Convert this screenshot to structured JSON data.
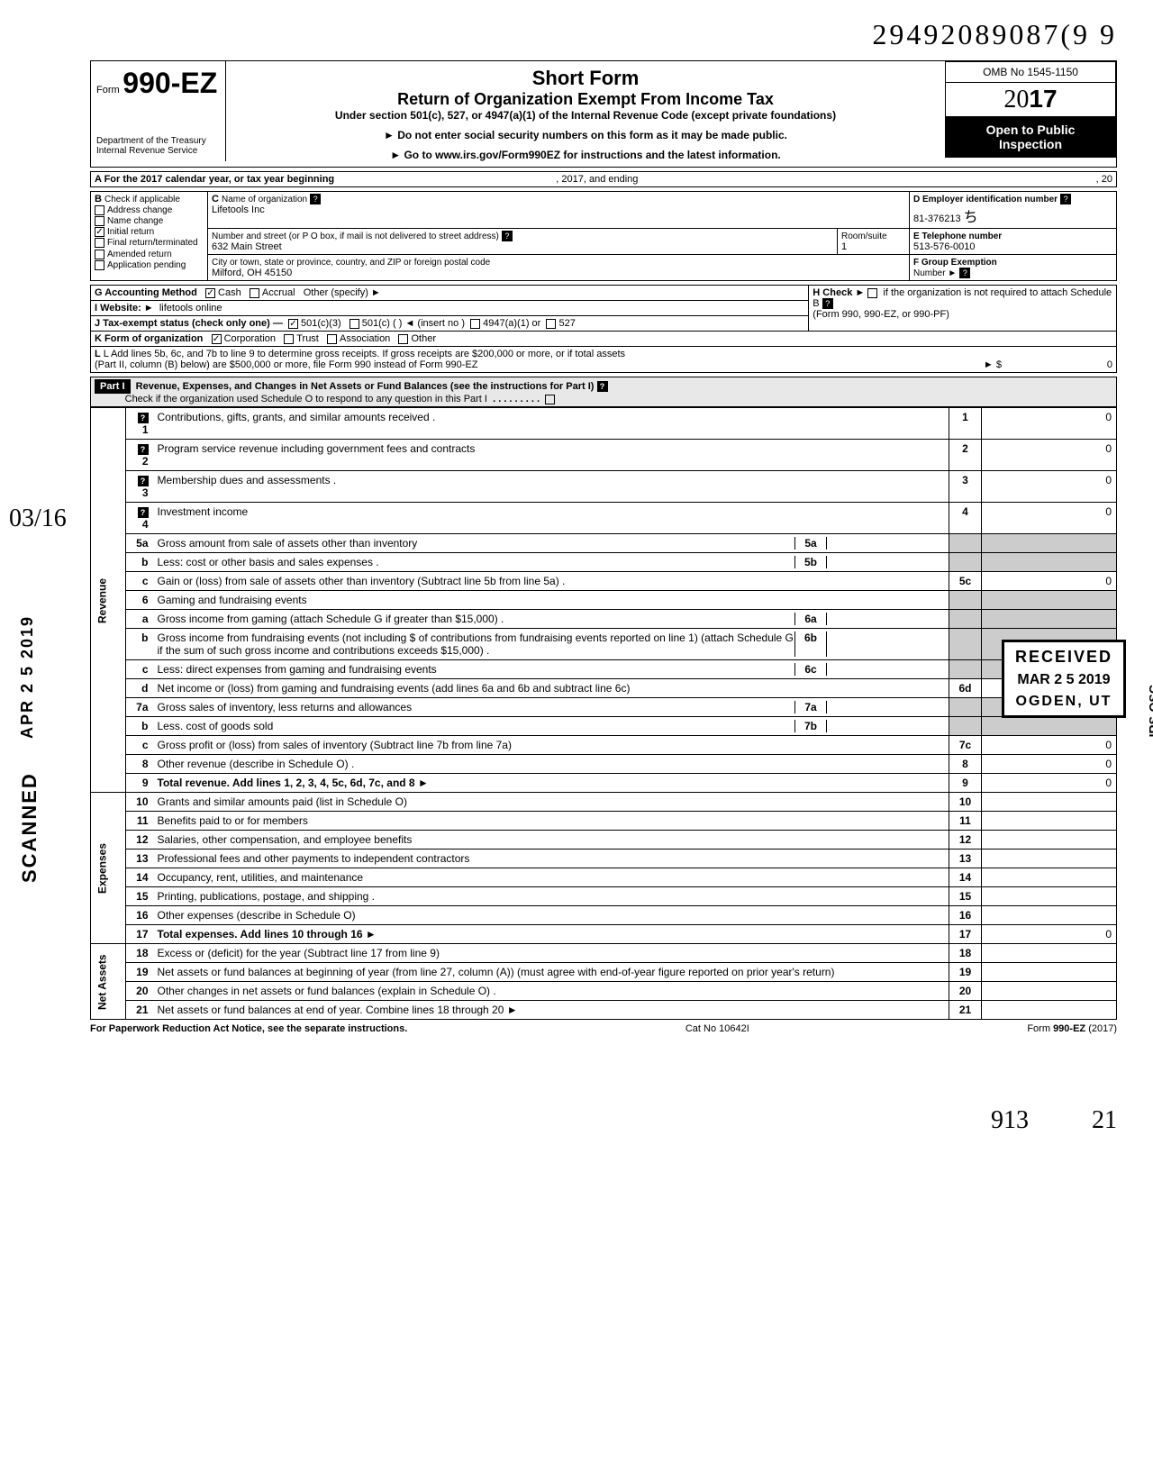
{
  "doc_number": "29492089087(9  9",
  "form": {
    "prefix": "Form",
    "number": "990-EZ",
    "title_line1": "Short Form",
    "title_line2": "Return of Organization Exempt From Income Tax",
    "subtitle": "Under section 501(c), 527, or 4947(a)(1) of the Internal Revenue Code (except private foundations)",
    "pointer1": "► Do not enter social security numbers on this form as it may be made public.",
    "pointer2": "► Go to www.irs.gov/Form990EZ for instructions and the latest information.",
    "dept1": "Department of the Treasury",
    "dept2": "Internal Revenue Service",
    "omb": "OMB No 1545-1150",
    "year_prefix": "20",
    "year_bold": "17",
    "open1": "Open to Public",
    "open2": "Inspection"
  },
  "rowA": {
    "label": "A For the 2017 calendar year, or tax year beginning",
    "mid": ", 2017, and ending",
    "end": ", 20"
  },
  "rowB": {
    "label": "B",
    "check_label": "Check if applicable",
    "opts": [
      "Address change",
      "Name change",
      "Initial return",
      "Final return/terminated",
      "Amended return",
      "Application pending"
    ],
    "checked_idx": 2
  },
  "rowC": {
    "label": "C",
    "name_label": "Name of organization",
    "name_value": "Lifetools Inc",
    "street_label": "Number and street (or P O  box, if mail is not delivered to street address)",
    "room_label": "Room/suite",
    "street_value": "632 Main Street",
    "room_value": "1",
    "city_label": "City or town, state or province, country, and ZIP or foreign postal code",
    "city_value": "Milford, OH  45150"
  },
  "rowD": {
    "label": "D Employer identification number",
    "value": "81-376213"
  },
  "rowE": {
    "label": "E Telephone number",
    "value": "513-576-0010"
  },
  "rowF": {
    "label": "F Group Exemption",
    "label2": "Number ►"
  },
  "rowG": {
    "label": "G Accounting Method",
    "cash": "Cash",
    "accrual": "Accrual",
    "other": "Other (specify) ►",
    "cash_checked": true
  },
  "rowH": {
    "label": "H Check ►",
    "text": "if the organization is not required to attach Schedule B",
    "sub": "(Form 990, 990-EZ, or 990-PF)"
  },
  "rowI": {
    "label": "I  Website: ►",
    "value": "lifetools online"
  },
  "rowJ": {
    "label": "J Tax-exempt status (check only one) —",
    "o1": "501(c)(3)",
    "o2": "501(c) (",
    "o2b": ") ◄ (insert no )",
    "o3": "4947(a)(1) or",
    "o4": "527",
    "o1_checked": true
  },
  "rowK": {
    "label": "K Form of organization",
    "corp": "Corporation",
    "trust": "Trust",
    "assoc": "Association",
    "other": "Other",
    "corp_checked": true
  },
  "rowL": {
    "text1": "L Add lines 5b, 6c, and 7b to line 9 to determine gross receipts. If gross receipts are $200,000 or more, or if total assets",
    "text2": "(Part II, column (B) below) are $500,000 or more, file Form 990 instead of Form 990-EZ",
    "arrow": "►  $",
    "value": "0"
  },
  "part1": {
    "label": "Part I",
    "title": "Revenue, Expenses, and Changes in Net Assets or Fund Balances (see the instructions for Part I)",
    "check_text": "Check if the organization used Schedule O to respond to any question in this Part I"
  },
  "section_labels": {
    "revenue": "Revenue",
    "expenses": "Expenses",
    "netassets": "Net Assets"
  },
  "lines": [
    {
      "n": "1",
      "d": "Contributions, gifts, grants, and similar amounts received .",
      "rn": "1",
      "a": "0"
    },
    {
      "n": "2",
      "d": "Program service revenue including government fees and contracts",
      "rn": "2",
      "a": "0"
    },
    {
      "n": "3",
      "d": "Membership dues and assessments .",
      "rn": "3",
      "a": "0"
    },
    {
      "n": "4",
      "d": "Investment income",
      "rn": "4",
      "a": "0"
    },
    {
      "n": "5a",
      "d": "Gross amount from sale of assets other than inventory",
      "mn": "5a",
      "ma": ""
    },
    {
      "n": "b",
      "d": "Less: cost or other basis and sales expenses .",
      "mn": "5b",
      "ma": ""
    },
    {
      "n": "c",
      "d": "Gain or (loss) from sale of assets other than inventory (Subtract line 5b from line 5a) .",
      "rn": "5c",
      "a": "0"
    },
    {
      "n": "6",
      "d": "Gaming and fundraising events"
    },
    {
      "n": "a",
      "d": "Gross income from gaming (attach Schedule G if greater than $15,000) .",
      "mn": "6a",
      "ma": ""
    },
    {
      "n": "b",
      "d": "Gross income from fundraising events (not including  $                  of contributions from fundraising events reported on line 1) (attach Schedule G if the sum of such gross income and contributions exceeds $15,000) .",
      "mn": "6b",
      "ma": ""
    },
    {
      "n": "c",
      "d": "Less: direct expenses from gaming and fundraising events",
      "mn": "6c",
      "ma": ""
    },
    {
      "n": "d",
      "d": "Net income or (loss) from gaming and fundraising events (add lines 6a and 6b and subtract line 6c)",
      "rn": "6d",
      "a": "0"
    },
    {
      "n": "7a",
      "d": "Gross sales of inventory, less returns and allowances",
      "mn": "7a",
      "ma": ""
    },
    {
      "n": "b",
      "d": "Less. cost of goods sold",
      "mn": "7b",
      "ma": ""
    },
    {
      "n": "c",
      "d": "Gross profit or (loss) from sales of inventory (Subtract line 7b from line 7a)",
      "rn": "7c",
      "a": "0"
    },
    {
      "n": "8",
      "d": "Other revenue (describe in Schedule O) .",
      "rn": "8",
      "a": "0"
    },
    {
      "n": "9",
      "d": "Total revenue. Add lines 1, 2, 3, 4, 5c, 6d, 7c, and 8   ►",
      "rn": "9",
      "a": "0",
      "bold": true
    },
    {
      "n": "10",
      "d": "Grants and similar amounts paid (list in Schedule O)",
      "rn": "10",
      "a": ""
    },
    {
      "n": "11",
      "d": "Benefits paid to or for members",
      "rn": "11",
      "a": ""
    },
    {
      "n": "12",
      "d": "Salaries, other compensation, and employee benefits",
      "rn": "12",
      "a": ""
    },
    {
      "n": "13",
      "d": "Professional fees and other payments to independent contractors",
      "rn": "13",
      "a": ""
    },
    {
      "n": "14",
      "d": "Occupancy, rent, utilities, and maintenance",
      "rn": "14",
      "a": ""
    },
    {
      "n": "15",
      "d": "Printing, publications, postage, and shipping .",
      "rn": "15",
      "a": ""
    },
    {
      "n": "16",
      "d": "Other expenses (describe in Schedule O)",
      "rn": "16",
      "a": ""
    },
    {
      "n": "17",
      "d": "Total expenses. Add lines 10 through 16   ►",
      "rn": "17",
      "a": "0",
      "bold": true
    },
    {
      "n": "18",
      "d": "Excess or (deficit) for the year (Subtract line 17 from line 9)",
      "rn": "18",
      "a": ""
    },
    {
      "n": "19",
      "d": "Net assets or fund balances at beginning of year (from line 27, column (A)) (must agree with end-of-year figure reported on prior year's return)",
      "rn": "19",
      "a": ""
    },
    {
      "n": "20",
      "d": "Other changes in net assets or fund balances (explain in Schedule O) .",
      "rn": "20",
      "a": ""
    },
    {
      "n": "21",
      "d": "Net assets or fund balances at end of year. Combine lines 18 through 20   ►",
      "rn": "21",
      "a": ""
    }
  ],
  "footer": {
    "left": "For Paperwork Reduction Act Notice, see the separate instructions.",
    "mid": "Cat  No  10642I",
    "right": "Form 990-EZ (2017)"
  },
  "stamps": {
    "scanned": "SCANNED",
    "date_vert": "APR  2 5  2019",
    "received": "RECEIVED",
    "received_date": "MAR 2 5 2019",
    "received_loc": "OGDEN, UT",
    "irs_osc": "IRS-OSC"
  },
  "handwriting": {
    "top_arrow": "↖",
    "left_frac": "03/16",
    "bottom_left": "913",
    "bottom_right": "21"
  }
}
